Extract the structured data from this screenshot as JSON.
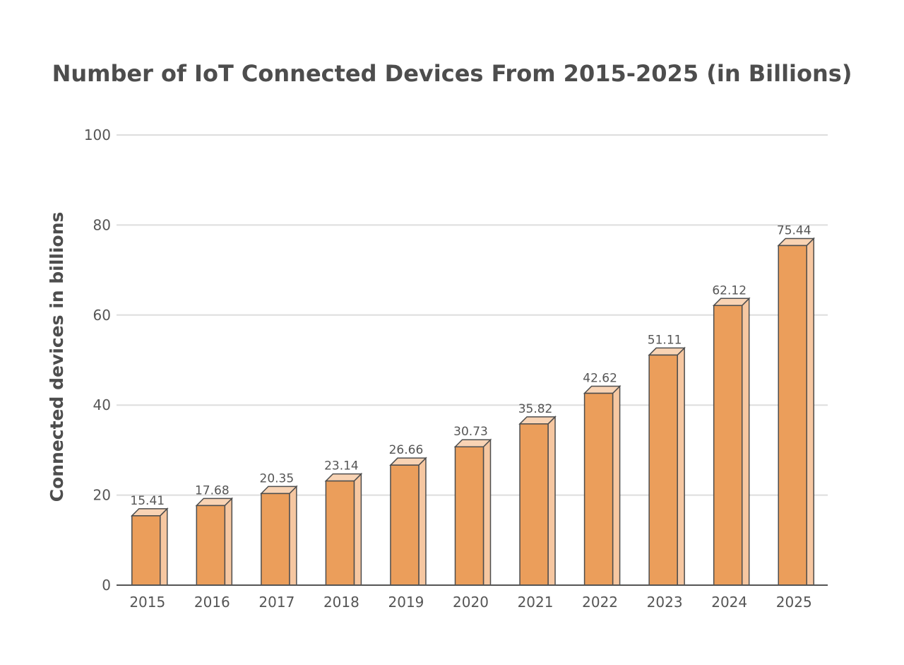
{
  "chart_data": {
    "type": "bar",
    "title": "Number of IoT Connected Devices From 2015-2025 (in Billions)",
    "xlabel": "",
    "ylabel": "Connected devices in billions",
    "categories": [
      "2015",
      "2016",
      "2017",
      "2018",
      "2019",
      "2020",
      "2021",
      "2022",
      "2023",
      "2024",
      "2025"
    ],
    "values": [
      15.41,
      17.68,
      20.35,
      23.14,
      26.66,
      30.73,
      35.82,
      42.62,
      51.11,
      62.12,
      75.44
    ],
    "value_labels": [
      "15.41",
      "17.68",
      "20.35",
      "23.14",
      "26.66",
      "30.73",
      "35.82",
      "42.62",
      "51.11",
      "62.12",
      "75.44"
    ],
    "ylim": [
      0,
      100
    ],
    "yticks": [
      0,
      20,
      40,
      60,
      80,
      100
    ],
    "ytick_labels": [
      "0",
      "20",
      "40",
      "60",
      "80",
      "100"
    ],
    "grid": true,
    "legend": "none",
    "colors": {
      "bar_front": "#eb9e5b",
      "bar_side": "#f6c7a1",
      "bar_top": "#f8d3b4",
      "bar_outline": "#4d4d4d",
      "grid": "#dddddd",
      "axis": "#555555",
      "text": "#4d4d4d"
    }
  }
}
